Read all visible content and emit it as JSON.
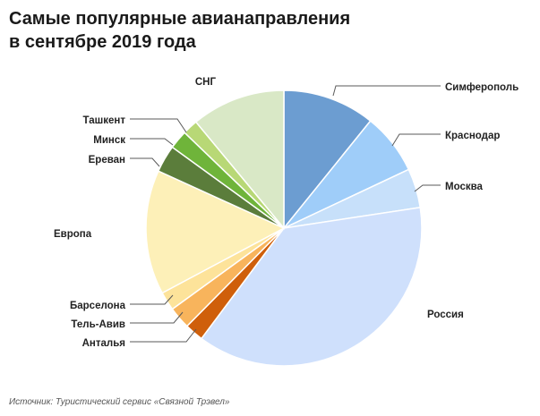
{
  "header": {
    "title_line1": "Самые популярные авианаправления",
    "title_line2": "в сентябре 2019 года"
  },
  "chart_data": {
    "type": "pie",
    "title": "Самые популярные авианаправления в сентябре 2019 года",
    "start_angle_deg": 0,
    "direction": "clockwise",
    "slices": [
      {
        "label": "Симферополь",
        "value": 10.8,
        "color": "#6c9dd1"
      },
      {
        "label": "Краснодар",
        "value": 7.2,
        "color": "#9fcdf9"
      },
      {
        "label": "Москва",
        "value": 4.6,
        "color": "#c7e0fa"
      },
      {
        "label": "Россия",
        "value": 37.6,
        "color": "#cfe0fc"
      },
      {
        "label": "Анталья",
        "value": 2.2,
        "color": "#cf5f0b"
      },
      {
        "label": "Тель-Авив",
        "value": 2.6,
        "color": "#f8b45c"
      },
      {
        "label": "Барселона",
        "value": 2.2,
        "color": "#fde39a"
      },
      {
        "label": "Европа",
        "value": 14.6,
        "color": "#fdf0b8"
      },
      {
        "label": "Ереван",
        "value": 3.2,
        "color": "#5b7d3b"
      },
      {
        "label": "Минск",
        "value": 2.2,
        "color": "#6fb43a"
      },
      {
        "label": "Ташкент",
        "value": 1.8,
        "color": "#b8d876"
      },
      {
        "label": "СНГ",
        "value": 11.0,
        "color": "#d9e8c6"
      }
    ]
  },
  "footer": {
    "source": "Источник: Туристический сервис «Связной Трэвел»"
  }
}
